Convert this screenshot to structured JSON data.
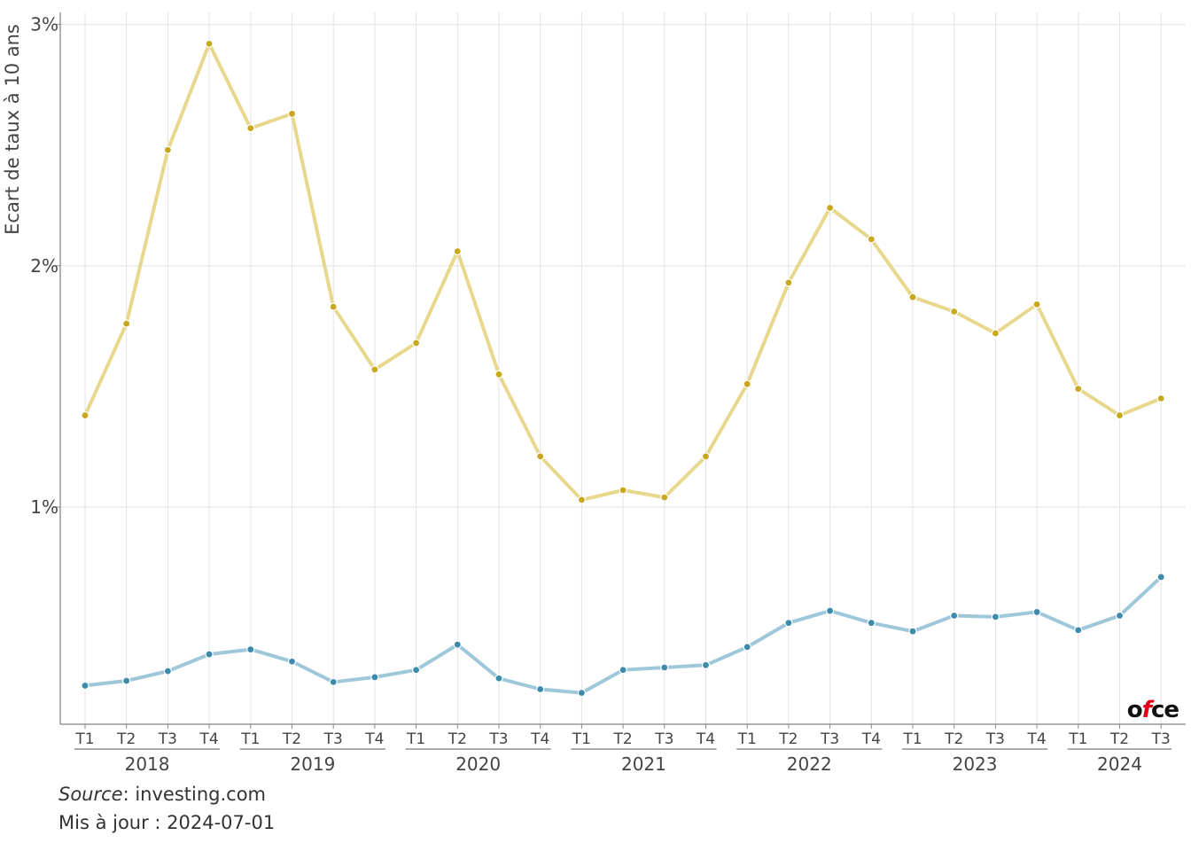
{
  "chart_data": {
    "type": "line",
    "title": "",
    "ylabel": "Ecart de taux à 10 ans",
    "xlabel": "",
    "ylim": [
      0.1,
      3.05
    ],
    "yticks": [
      1,
      2,
      3
    ],
    "ytick_labels": [
      "1%",
      "2%",
      "3%"
    ],
    "grid": true,
    "years": [
      "2018",
      "2019",
      "2020",
      "2021",
      "2022",
      "2023",
      "2024"
    ],
    "quarters": [
      "T1",
      "T2",
      "T3",
      "T4",
      "T1",
      "T2",
      "T3",
      "T4",
      "T1",
      "T2",
      "T3",
      "T4",
      "T1",
      "T2",
      "T3",
      "T4",
      "T1",
      "T2",
      "T3",
      "T4",
      "T1",
      "T2",
      "T3",
      "T4",
      "T1",
      "T2",
      "T3"
    ],
    "series": [
      {
        "color": "#e8d88e",
        "marker_color": "#c9a81f",
        "values": [
          1.38,
          1.76,
          2.48,
          2.92,
          2.57,
          2.63,
          1.83,
          1.57,
          1.68,
          2.06,
          1.55,
          1.21,
          1.03,
          1.07,
          1.04,
          1.21,
          1.51,
          1.93,
          2.24,
          2.11,
          1.87,
          1.81,
          1.72,
          1.84,
          1.49,
          1.38,
          1.45
        ]
      },
      {
        "color": "#9ec7da",
        "marker_color": "#3d8bab",
        "values": [
          0.26,
          0.28,
          0.32,
          0.39,
          0.41,
          0.36,
          0.275,
          0.295,
          0.325,
          0.43,
          0.29,
          0.245,
          0.23,
          0.325,
          0.335,
          0.345,
          0.42,
          0.52,
          0.57,
          0.52,
          0.485,
          0.55,
          0.545,
          0.565,
          0.49,
          0.55,
          0.71
        ]
      }
    ]
  },
  "footer": {
    "source_label": "Source",
    "source_value": ": investing.com",
    "update_label": "Mis à jour : 2024-07-01"
  },
  "logo": {
    "part1": "o",
    "part2": "f",
    "part3": "ce"
  }
}
